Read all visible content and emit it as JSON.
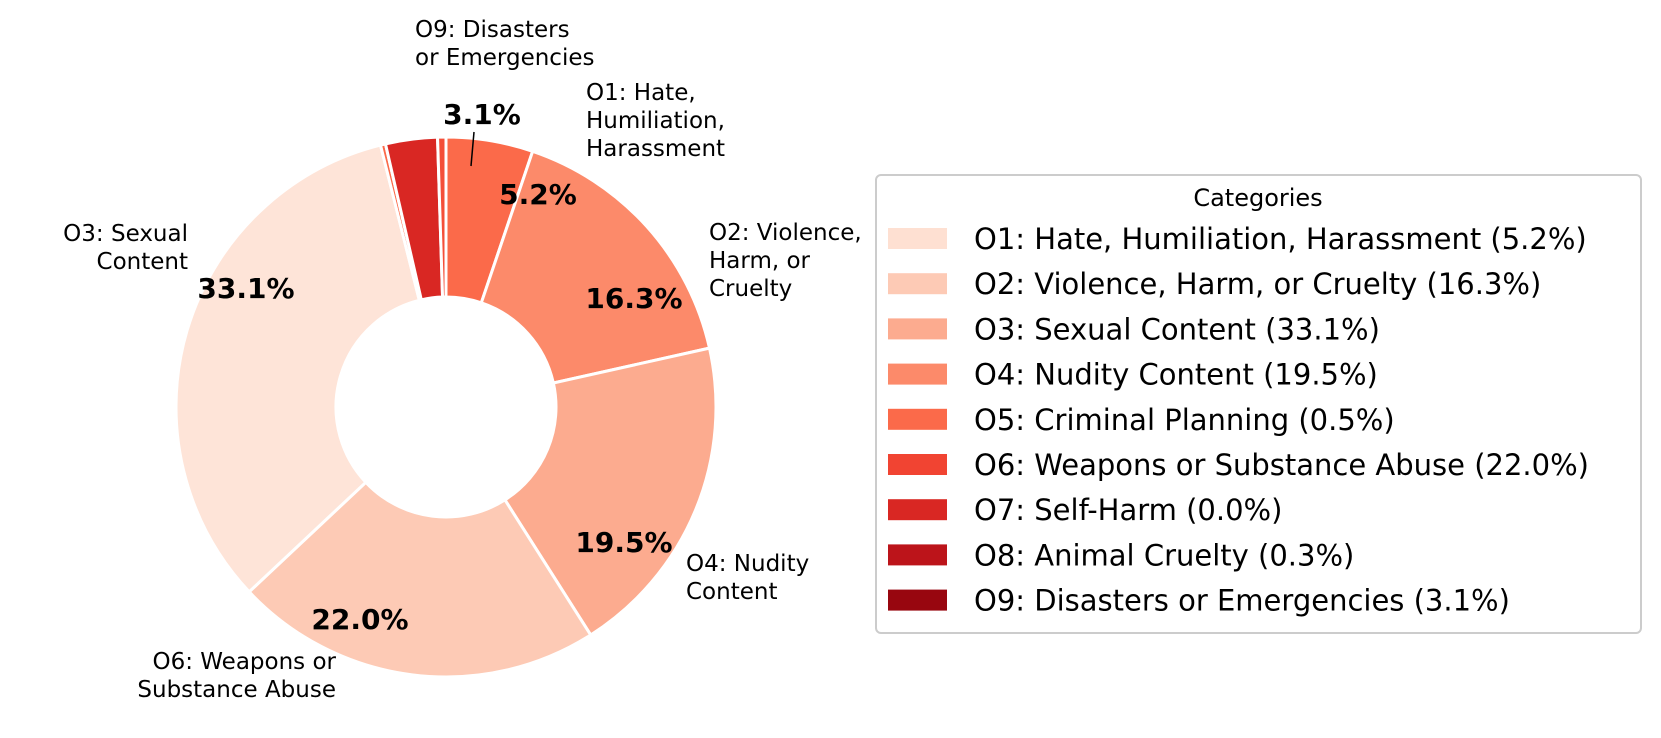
{
  "chart_data": {
    "type": "pie",
    "donut": true,
    "slices": [
      {
        "outer_label": [
          "O1: Hate,",
          "Humiliation,",
          "Harassment"
        ],
        "pct_label": "5.2%",
        "value": 5.2,
        "color": "#fb6a4a"
      },
      {
        "outer_label": [
          "O2: Violence,",
          "Harm, or",
          "Cruelty"
        ],
        "pct_label": "16.3%",
        "value": 16.3,
        "color": "#fc8a6a"
      },
      {
        "outer_label": [
          "O4: Nudity",
          "Content"
        ],
        "pct_label": "19.5%",
        "value": 19.5,
        "color": "#fcab8f"
      },
      {
        "outer_label": [
          "O6: Weapons or",
          "Substance Abuse"
        ],
        "pct_label": "22.0%",
        "value": 22.0,
        "color": "#fdcab5"
      },
      {
        "outer_label": [
          "O3: Sexual",
          "Content"
        ],
        "pct_label": "33.1%",
        "value": 33.1,
        "color": "#fee4d8"
      },
      {
        "outer_label": [],
        "pct_label": "",
        "value": 0.3,
        "color": "#fb6a4a"
      },
      {
        "outer_label": [
          "O9: Disasters",
          "or Emergencies"
        ],
        "pct_label": "3.1%",
        "value": 3.1,
        "color": "#d92723"
      },
      {
        "outer_label": [],
        "pct_label": "",
        "value": 0.5,
        "color": "#f44f39"
      }
    ],
    "legend": {
      "title": "Categories",
      "placement": "right",
      "entries": [
        {
          "label": "O1: Hate, Humiliation, Harassment (5.2%)",
          "color": "#fee0d2"
        },
        {
          "label": "O2: Violence, Harm, or Cruelty (16.3%)",
          "color": "#fdcab5"
        },
        {
          "label": "O3: Sexual Content (33.1%)",
          "color": "#fcab8f"
        },
        {
          "label": "O4: Nudity Content (19.5%)",
          "color": "#fc8a6a"
        },
        {
          "label": "O5: Criminal Planning (0.5%)",
          "color": "#fb6a4a"
        },
        {
          "label": "O6: Weapons or Substance Abuse (22.0%)",
          "color": "#f14432"
        },
        {
          "label": "O7: Self-Harm (0.0%)",
          "color": "#d92723"
        },
        {
          "label": "O8: Animal Cruelty (0.3%)",
          "color": "#bc141a"
        },
        {
          "label": "O9: Disasters or Emergencies (3.1%)",
          "color": "#98060f"
        }
      ]
    }
  }
}
